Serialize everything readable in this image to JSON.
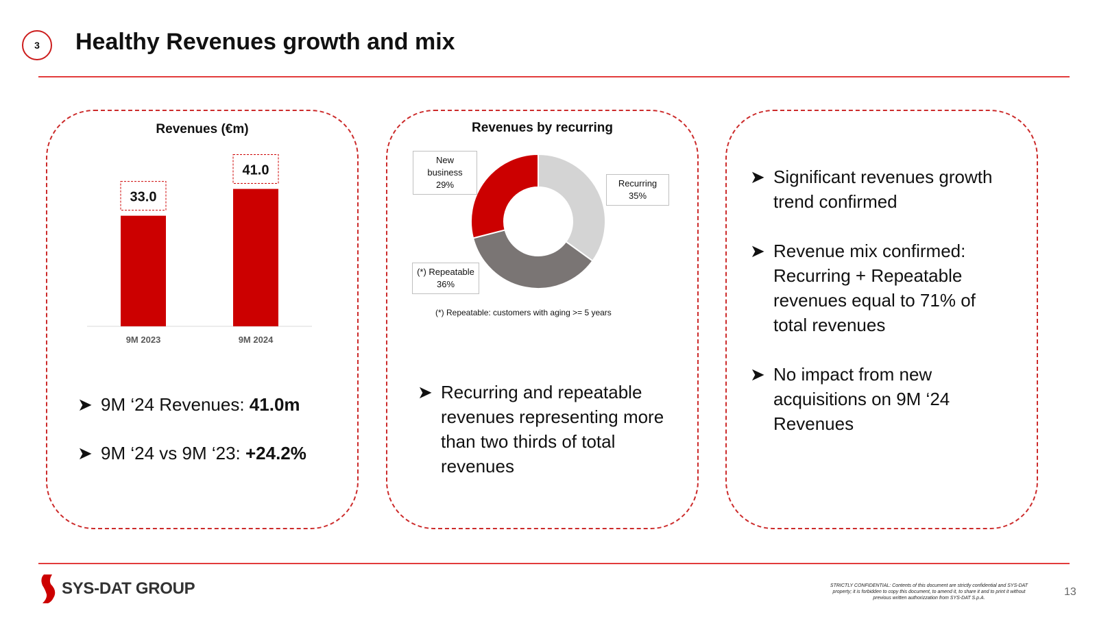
{
  "header": {
    "section_number": "3",
    "title": "Healthy Revenues growth and mix"
  },
  "card1": {
    "bullets": [
      {
        "text": "9M ‘24 Revenues: ",
        "bold": "41.0m"
      },
      {
        "text": "9M ‘24 vs 9M ‘23: ",
        "bold": "+24.2%"
      }
    ]
  },
  "card2": {
    "footnote": "(*) Repeatable: customers with aging >= 5 years",
    "bullet": "Recurring and repeatable revenues representing more than two thirds of total revenues"
  },
  "card3": {
    "bullets": [
      "Significant revenues growth trend confirmed",
      "Revenue mix confirmed: Recurring + Repeatable revenues equal to 71% of total revenues",
      "No impact from new acquisitions on 9M ‘24 Revenues"
    ]
  },
  "chart_data": [
    {
      "type": "bar",
      "title": "Revenues (€m)",
      "categories": [
        "9M 2023",
        "9M 2024"
      ],
      "values": [
        33.0,
        41.0
      ],
      "value_labels": [
        "33.0",
        "41.0"
      ],
      "ylim": [
        0,
        45
      ],
      "grid": false,
      "color": "#cc0000"
    },
    {
      "type": "pie",
      "title": "Revenues by recurring",
      "donut": true,
      "slices": [
        {
          "name": "Recurring",
          "value": 35,
          "label": "35%",
          "color": "#d4d4d4"
        },
        {
          "name": "(*) Repeatable",
          "value": 36,
          "label": "36%",
          "color": "#7a7574"
        },
        {
          "name": "New business",
          "value": 29,
          "label": "29%",
          "color": "#cc0000"
        }
      ]
    }
  ],
  "footer": {
    "logo_text": "SYS-DAT GROUP",
    "disclaimer": "STRICTLY CONFIDENTIAL: Contents of this document are strictly confidential and SYS-DAT property; it is forbidden to copy this document, to amend it, to share it and to print it without previous written authorizzation from SYS-DAT S.p.A.",
    "page_number": "13"
  },
  "colors": {
    "accent": "#cc0000",
    "rule": "#e23b3b",
    "dashed_border": "#cc2a2a"
  },
  "icons": {
    "bullet": "arrow-bullet-icon",
    "logo": "sysdat-logo-icon"
  }
}
